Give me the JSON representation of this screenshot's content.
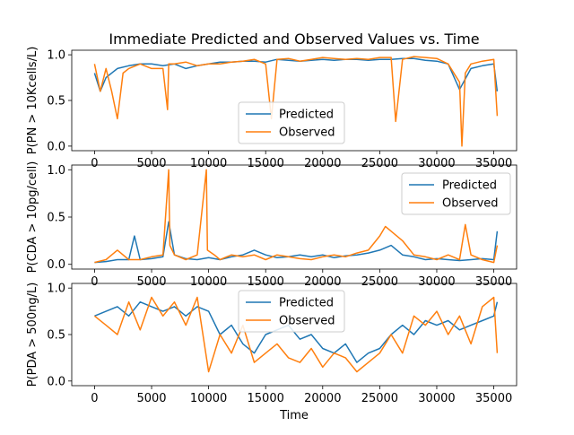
{
  "figure": {
    "title": "Immediate Predicted and Observed Values vs. Time",
    "xlabel": "Time"
  },
  "colors": {
    "predicted": "#1f77b4",
    "observed": "#ff7f0e"
  },
  "chart_data": [
    {
      "type": "line",
      "ylabel": "P(PN > 10Kcells/L)",
      "xlim": [
        -2000,
        37000
      ],
      "ylim": [
        -0.05,
        1.05
      ],
      "xticks": [
        0,
        5000,
        10000,
        15000,
        20000,
        25000,
        30000,
        35000
      ],
      "xtick_labels": [
        "0",
        "5000",
        "10000",
        "15000",
        "20000",
        "25000",
        "30000",
        "35000"
      ],
      "yticks": [
        0.0,
        0.5,
        1.0
      ],
      "ytick_labels": [
        "0.0",
        "0.5",
        "1.0"
      ],
      "legend": {
        "position": "lower-center",
        "labels": [
          "Predicted",
          "Observed"
        ]
      },
      "series": [
        {
          "name": "Predicted",
          "x": [
            0,
            500,
            1000,
            2000,
            3000,
            4000,
            5000,
            6000,
            7000,
            8000,
            9000,
            10000,
            11000,
            12000,
            13000,
            14000,
            15000,
            16000,
            17000,
            18000,
            19000,
            20000,
            21000,
            22000,
            23000,
            24000,
            25000,
            26000,
            27000,
            28000,
            29000,
            30000,
            31000,
            32000,
            33000,
            34000,
            35000,
            35300
          ],
          "y": [
            0.8,
            0.6,
            0.75,
            0.85,
            0.88,
            0.9,
            0.9,
            0.88,
            0.9,
            0.85,
            0.88,
            0.9,
            0.92,
            0.92,
            0.93,
            0.93,
            0.92,
            0.95,
            0.94,
            0.93,
            0.94,
            0.95,
            0.94,
            0.95,
            0.95,
            0.94,
            0.95,
            0.95,
            0.96,
            0.96,
            0.94,
            0.93,
            0.9,
            0.62,
            0.85,
            0.88,
            0.9,
            0.6
          ]
        },
        {
          "name": "Observed",
          "x": [
            0,
            500,
            1000,
            1500,
            2000,
            2500,
            3000,
            4000,
            5000,
            6000,
            6400,
            6500,
            7000,
            8000,
            9000,
            10000,
            11000,
            12000,
            13000,
            14000,
            15000,
            15500,
            16000,
            17000,
            18000,
            19000,
            20000,
            21000,
            22000,
            23000,
            24000,
            25000,
            26000,
            26400,
            27000,
            28000,
            29000,
            30000,
            31000,
            32000,
            32200,
            32500,
            33000,
            34000,
            35000,
            35300
          ],
          "y": [
            0.9,
            0.6,
            0.85,
            0.6,
            0.3,
            0.8,
            0.85,
            0.9,
            0.85,
            0.85,
            0.4,
            0.9,
            0.9,
            0.92,
            0.88,
            0.9,
            0.9,
            0.92,
            0.93,
            0.95,
            0.9,
            0.3,
            0.95,
            0.96,
            0.93,
            0.95,
            0.97,
            0.96,
            0.95,
            0.96,
            0.95,
            0.97,
            0.97,
            0.27,
            0.95,
            0.98,
            0.97,
            0.96,
            0.9,
            0.7,
            0.0,
            0.8,
            0.9,
            0.93,
            0.95,
            0.33
          ]
        }
      ]
    },
    {
      "type": "line",
      "ylabel": "P(CDA > 10pg/cell)",
      "xlim": [
        -2000,
        37000
      ],
      "ylim": [
        -0.05,
        1.05
      ],
      "xticks": [
        0,
        5000,
        10000,
        15000,
        20000,
        25000,
        30000,
        35000
      ],
      "xtick_labels": [
        "0",
        "5000",
        "10000",
        "15000",
        "20000",
        "25000",
        "30000",
        "35000"
      ],
      "yticks": [
        0.0,
        0.5,
        1.0
      ],
      "ytick_labels": [
        "0.0",
        "0.5",
        "1.0"
      ],
      "legend": {
        "position": "top-right",
        "labels": [
          "Predicted",
          "Observed"
        ]
      },
      "series": [
        {
          "name": "Predicted",
          "x": [
            0,
            1000,
            2000,
            3000,
            3500,
            4000,
            5000,
            6000,
            6500,
            7000,
            8000,
            9000,
            10000,
            11000,
            12000,
            13000,
            14000,
            15000,
            16000,
            17000,
            18000,
            19000,
            20000,
            21000,
            22000,
            23000,
            24000,
            25000,
            26000,
            27000,
            28000,
            29000,
            30000,
            31000,
            32000,
            33000,
            34000,
            35000,
            35300
          ],
          "y": [
            0.02,
            0.03,
            0.05,
            0.05,
            0.3,
            0.05,
            0.06,
            0.08,
            0.45,
            0.1,
            0.06,
            0.05,
            0.07,
            0.05,
            0.08,
            0.1,
            0.15,
            0.1,
            0.07,
            0.08,
            0.1,
            0.08,
            0.1,
            0.07,
            0.09,
            0.1,
            0.12,
            0.15,
            0.2,
            0.1,
            0.08,
            0.05,
            0.06,
            0.05,
            0.04,
            0.05,
            0.06,
            0.05,
            0.35
          ]
        },
        {
          "name": "Observed",
          "x": [
            0,
            1000,
            2000,
            3000,
            4000,
            5000,
            6000,
            6500,
            6600,
            7000,
            8000,
            9000,
            9800,
            9900,
            10500,
            11000,
            12000,
            13000,
            14000,
            15000,
            16000,
            17000,
            18000,
            19000,
            20000,
            21000,
            22000,
            23000,
            24000,
            25000,
            25500,
            26000,
            27000,
            28000,
            29000,
            30000,
            31000,
            32000,
            32500,
            33000,
            34000,
            35000,
            35300
          ],
          "y": [
            0.02,
            0.05,
            0.15,
            0.05,
            0.05,
            0.08,
            0.1,
            1.0,
            0.2,
            0.1,
            0.05,
            0.1,
            1.0,
            0.15,
            0.1,
            0.05,
            0.1,
            0.08,
            0.1,
            0.05,
            0.1,
            0.08,
            0.06,
            0.05,
            0.08,
            0.1,
            0.08,
            0.12,
            0.15,
            0.3,
            0.4,
            0.35,
            0.25,
            0.1,
            0.08,
            0.05,
            0.1,
            0.05,
            0.42,
            0.1,
            0.05,
            0.02,
            0.2
          ]
        }
      ]
    },
    {
      "type": "line",
      "ylabel": "P(PDA > 500ng/L)",
      "xlim": [
        -2000,
        37000
      ],
      "ylim": [
        -0.05,
        1.05
      ],
      "xticks": [
        0,
        5000,
        10000,
        15000,
        20000,
        25000,
        30000,
        35000
      ],
      "xtick_labels": [
        "0",
        "5000",
        "10000",
        "15000",
        "20000",
        "25000",
        "30000",
        "35000"
      ],
      "yticks": [
        0.0,
        0.5,
        1.0
      ],
      "ytick_labels": [
        "0.0",
        "0.5",
        "1.0"
      ],
      "legend": {
        "position": "top-center",
        "labels": [
          "Predicted",
          "Observed"
        ]
      },
      "series": [
        {
          "name": "Predicted",
          "x": [
            0,
            1000,
            2000,
            3000,
            4000,
            5000,
            6000,
            7000,
            8000,
            9000,
            10000,
            11000,
            12000,
            13000,
            14000,
            15000,
            16000,
            17000,
            18000,
            19000,
            20000,
            21000,
            22000,
            23000,
            24000,
            25000,
            26000,
            27000,
            28000,
            29000,
            30000,
            31000,
            32000,
            33000,
            34000,
            35000,
            35300
          ],
          "y": [
            0.7,
            0.75,
            0.8,
            0.7,
            0.85,
            0.8,
            0.75,
            0.8,
            0.7,
            0.8,
            0.75,
            0.5,
            0.6,
            0.4,
            0.3,
            0.5,
            0.55,
            0.6,
            0.45,
            0.5,
            0.35,
            0.3,
            0.4,
            0.2,
            0.3,
            0.35,
            0.5,
            0.6,
            0.5,
            0.65,
            0.6,
            0.65,
            0.55,
            0.6,
            0.65,
            0.7,
            0.85
          ]
        },
        {
          "name": "Observed",
          "x": [
            0,
            1000,
            2000,
            3000,
            4000,
            5000,
            6000,
            7000,
            8000,
            9000,
            10000,
            10500,
            11000,
            12000,
            13000,
            14000,
            15000,
            16000,
            17000,
            18000,
            19000,
            20000,
            21000,
            22000,
            23000,
            24000,
            25000,
            26000,
            27000,
            28000,
            29000,
            30000,
            31000,
            32000,
            33000,
            34000,
            35000,
            35300
          ],
          "y": [
            0.7,
            0.6,
            0.5,
            0.85,
            0.55,
            0.9,
            0.7,
            0.85,
            0.6,
            0.9,
            0.1,
            0.3,
            0.5,
            0.3,
            0.6,
            0.2,
            0.3,
            0.4,
            0.25,
            0.2,
            0.35,
            0.15,
            0.3,
            0.25,
            0.1,
            0.2,
            0.3,
            0.5,
            0.3,
            0.7,
            0.6,
            0.75,
            0.5,
            0.7,
            0.4,
            0.8,
            0.9,
            0.3
          ]
        }
      ]
    }
  ]
}
